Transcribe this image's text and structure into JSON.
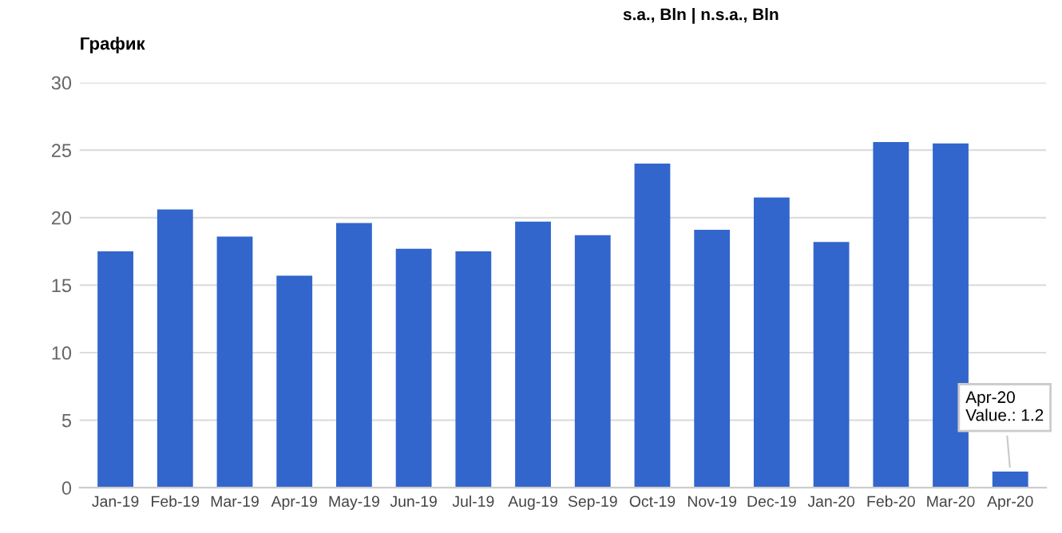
{
  "chart_data": {
    "type": "bar",
    "title": "График",
    "subtitle": "s.a., Bln | n.s.a., Bln",
    "categories": [
      "Jan-19",
      "Feb-19",
      "Mar-19",
      "Apr-19",
      "May-19",
      "Jun-19",
      "Jul-19",
      "Aug-19",
      "Sep-19",
      "Oct-19",
      "Nov-19",
      "Dec-19",
      "Jan-20",
      "Feb-20",
      "Mar-20",
      "Apr-20"
    ],
    "values": [
      17.5,
      20.6,
      18.6,
      15.7,
      19.6,
      17.7,
      17.5,
      19.7,
      18.7,
      24.0,
      19.1,
      21.5,
      18.2,
      25.6,
      25.5,
      1.2
    ],
    "color": "#3366cc",
    "ylim": [
      0,
      30
    ],
    "yticks": [
      0,
      5,
      10,
      15,
      20,
      25,
      30
    ],
    "grid": "y",
    "legend": false,
    "annotations": [
      {
        "text": "Apr-20\nValue.: 1.2",
        "x": "Apr-20",
        "y": 1.2
      }
    ]
  }
}
